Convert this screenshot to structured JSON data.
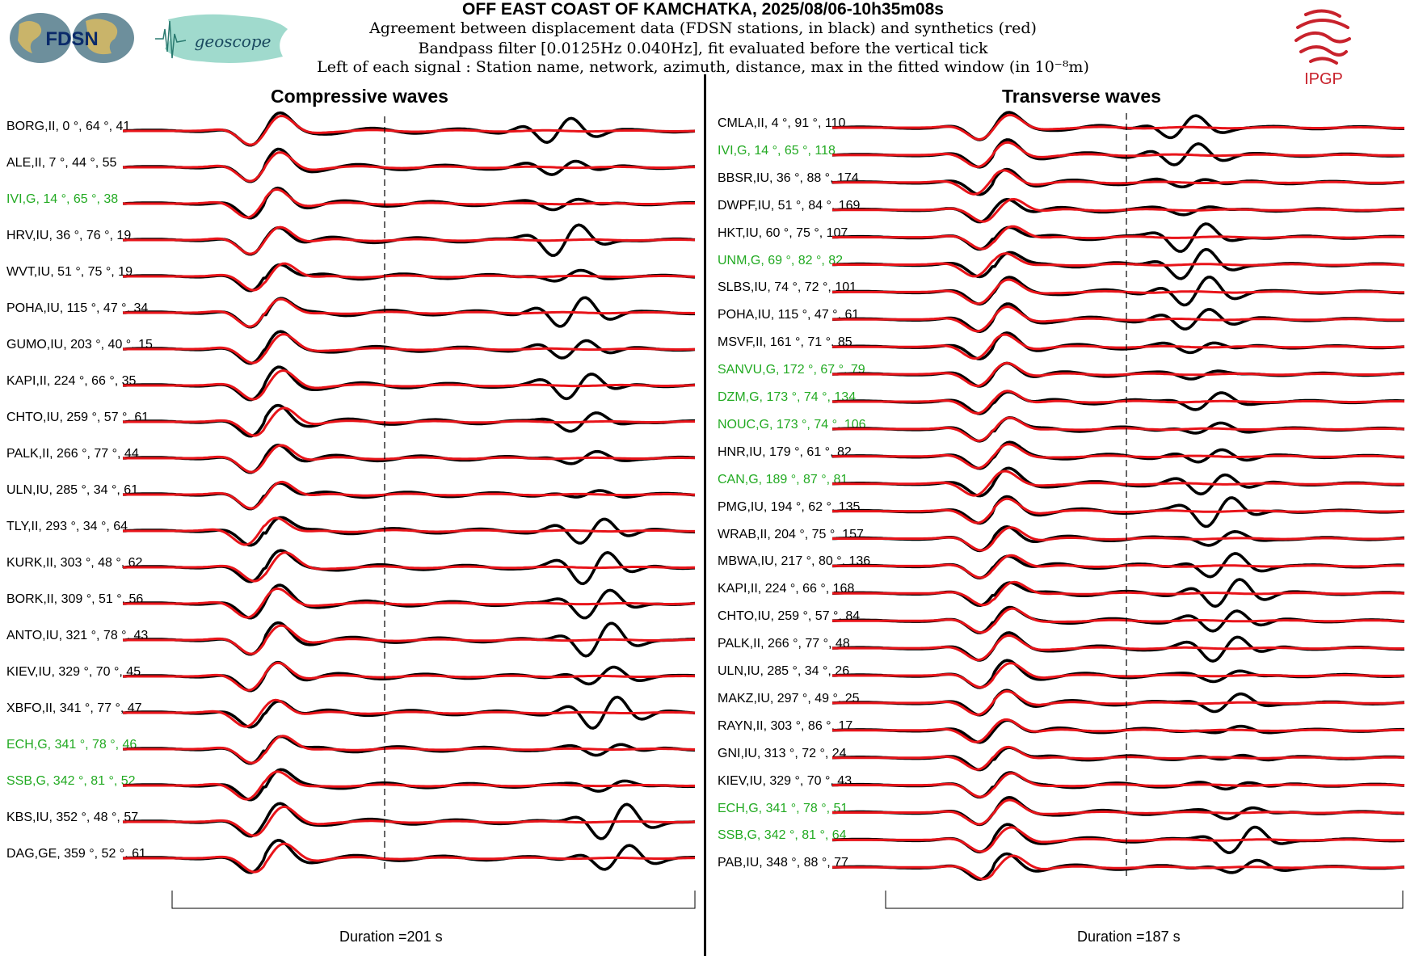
{
  "header": {
    "title": "OFF EAST COAST OF KAMCHATKA, 2025/08/06-10h35m08s",
    "line1": "Agreement between displacement data (FDSN stations, in black) and synthetics (red)",
    "line2": "Bandpass filter [0.0125Hz 0.040Hz], fit evaluated before the vertical tick",
    "line3": "Left of each signal : Station name, network, azimuth, distance, max in the fitted window (in 10⁻⁸m)"
  },
  "logos": {
    "fdsn": "FDSN",
    "geoscope": "geoscope",
    "ipgp": "IPGP"
  },
  "colors": {
    "data": "#000000",
    "synthetic": "#e8141a",
    "geoscope_label": "#22aa22",
    "ipgp": "#c8222c"
  },
  "chart_data": [
    {
      "type": "line",
      "title": "Compressive waves",
      "duration_label": "Duration =201 s",
      "duration_s": 201,
      "series": [
        "data (black)",
        "synthetics (red)"
      ],
      "stations": [
        {
          "label": "BORG,II, 0 °, 64 °, 41",
          "name": "BORG",
          "net": "II",
          "az": 0,
          "dist": 64,
          "max": 41,
          "geoscope": false
        },
        {
          "label": "ALE,II, 7 °, 44 °, 55",
          "name": "ALE",
          "net": "II",
          "az": 7,
          "dist": 44,
          "max": 55,
          "geoscope": false
        },
        {
          "label": "IVI,G, 14 °, 65 °, 38",
          "name": "IVI",
          "net": "G",
          "az": 14,
          "dist": 65,
          "max": 38,
          "geoscope": true
        },
        {
          "label": "HRV,IU, 36 °, 76 °, 19",
          "name": "HRV",
          "net": "IU",
          "az": 36,
          "dist": 76,
          "max": 19,
          "geoscope": false
        },
        {
          "label": "WVT,IU, 51 °, 75 °, 19",
          "name": "WVT",
          "net": "IU",
          "az": 51,
          "dist": 75,
          "max": 19,
          "geoscope": false
        },
        {
          "label": "POHA,IU, 115 °, 47 °, 34",
          "name": "POHA",
          "net": "IU",
          "az": 115,
          "dist": 47,
          "max": 34,
          "geoscope": false
        },
        {
          "label": "GUMO,IU, 203 °, 40 °, 15",
          "name": "GUMO",
          "net": "IU",
          "az": 203,
          "dist": 40,
          "max": 15,
          "geoscope": false
        },
        {
          "label": "KAPI,II, 224 °, 66 °, 35",
          "name": "KAPI",
          "net": "II",
          "az": 224,
          "dist": 66,
          "max": 35,
          "geoscope": false
        },
        {
          "label": "CHTO,IU, 259 °, 57 °, 61",
          "name": "CHTO",
          "net": "IU",
          "az": 259,
          "dist": 57,
          "max": 61,
          "geoscope": false
        },
        {
          "label": "PALK,II, 266 °, 77 °, 44",
          "name": "PALK",
          "net": "II",
          "az": 266,
          "dist": 77,
          "max": 44,
          "geoscope": false
        },
        {
          "label": "ULN,IU, 285 °, 34 °, 61",
          "name": "ULN",
          "net": "IU",
          "az": 285,
          "dist": 34,
          "max": 61,
          "geoscope": false
        },
        {
          "label": "TLY,II, 293 °, 34 °, 64",
          "name": "TLY",
          "net": "II",
          "az": 293,
          "dist": 34,
          "max": 64,
          "geoscope": false
        },
        {
          "label": "KURK,II, 303 °, 48 °, 62",
          "name": "KURK",
          "net": "II",
          "az": 303,
          "dist": 48,
          "max": 62,
          "geoscope": false
        },
        {
          "label": "BORK,II, 309 °, 51 °, 56",
          "name": "BORK",
          "net": "II",
          "az": 309,
          "dist": 51,
          "max": 56,
          "geoscope": false
        },
        {
          "label": "ANTO,IU, 321 °, 78 °, 43",
          "name": "ANTO",
          "net": "IU",
          "az": 321,
          "dist": 78,
          "max": 43,
          "geoscope": false
        },
        {
          "label": "KIEV,IU, 329 °, 70 °, 45",
          "name": "KIEV",
          "net": "IU",
          "az": 329,
          "dist": 70,
          "max": 45,
          "geoscope": false
        },
        {
          "label": "XBFO,II, 341 °, 77 °, 47",
          "name": "XBFO",
          "net": "II",
          "az": 341,
          "dist": 77,
          "max": 47,
          "geoscope": false
        },
        {
          "label": "ECH,G, 341 °, 78 °, 46",
          "name": "ECH",
          "net": "G",
          "az": 341,
          "dist": 78,
          "max": 46,
          "geoscope": true
        },
        {
          "label": "SSB,G, 342 °, 81 °, 52",
          "name": "SSB",
          "net": "G",
          "az": 342,
          "dist": 81,
          "max": 52,
          "geoscope": true
        },
        {
          "label": "KBS,IU, 352 °, 48 °, 57",
          "name": "KBS",
          "net": "IU",
          "az": 352,
          "dist": 48,
          "max": 57,
          "geoscope": false
        },
        {
          "label": "DAG,GE, 359 °, 52 °, 61",
          "name": "DAG",
          "net": "GE",
          "az": 359,
          "dist": 52,
          "max": 61,
          "geoscope": false
        }
      ]
    },
    {
      "type": "line",
      "title": "Transverse waves",
      "duration_label": "Duration =187 s",
      "duration_s": 187,
      "series": [
        "data (black)",
        "synthetics (red)"
      ],
      "stations": [
        {
          "label": "CMLA,II, 4 °, 91 °, 110",
          "name": "CMLA",
          "net": "II",
          "az": 4,
          "dist": 91,
          "max": 110,
          "geoscope": false
        },
        {
          "label": "IVI,G, 14 °, 65 °, 118",
          "name": "IVI",
          "net": "G",
          "az": 14,
          "dist": 65,
          "max": 118,
          "geoscope": true
        },
        {
          "label": "BBSR,IU, 36 °, 88 °, 174",
          "name": "BBSR",
          "net": "IU",
          "az": 36,
          "dist": 88,
          "max": 174,
          "geoscope": false
        },
        {
          "label": "DWPF,IU, 51 °, 84 °, 169",
          "name": "DWPF",
          "net": "IU",
          "az": 51,
          "dist": 84,
          "max": 169,
          "geoscope": false
        },
        {
          "label": "HKT,IU, 60 °, 75 °, 107",
          "name": "HKT",
          "net": "IU",
          "az": 60,
          "dist": 75,
          "max": 107,
          "geoscope": false
        },
        {
          "label": "UNM,G, 69 °, 82 °, 82",
          "name": "UNM",
          "net": "G",
          "az": 69,
          "dist": 82,
          "max": 82,
          "geoscope": true
        },
        {
          "label": "SLBS,IU, 74 °, 72 °, 101",
          "name": "SLBS",
          "net": "IU",
          "az": 74,
          "dist": 72,
          "max": 101,
          "geoscope": false
        },
        {
          "label": "POHA,IU, 115 °, 47 °, 61",
          "name": "POHA",
          "net": "IU",
          "az": 115,
          "dist": 47,
          "max": 61,
          "geoscope": false
        },
        {
          "label": "MSVF,II, 161 °, 71 °, 85",
          "name": "MSVF",
          "net": "II",
          "az": 161,
          "dist": 71,
          "max": 85,
          "geoscope": false
        },
        {
          "label": "SANVU,G, 172 °, 67 °, 79",
          "name": "SANVU",
          "net": "G",
          "az": 172,
          "dist": 67,
          "max": 79,
          "geoscope": true
        },
        {
          "label": "DZM,G, 173 °, 74 °, 134",
          "name": "DZM",
          "net": "G",
          "az": 173,
          "dist": 74,
          "max": 134,
          "geoscope": true
        },
        {
          "label": "NOUC,G, 173 °, 74 °, 106",
          "name": "NOUC",
          "net": "G",
          "az": 173,
          "dist": 74,
          "max": 106,
          "geoscope": true
        },
        {
          "label": "HNR,IU, 179 °, 61 °, 82",
          "name": "HNR",
          "net": "IU",
          "az": 179,
          "dist": 61,
          "max": 82,
          "geoscope": false
        },
        {
          "label": "CAN,G, 189 °, 87 °, 81",
          "name": "CAN",
          "net": "G",
          "az": 189,
          "dist": 87,
          "max": 81,
          "geoscope": true
        },
        {
          "label": "PMG,IU, 194 °, 62 °, 135",
          "name": "PMG",
          "net": "IU",
          "az": 194,
          "dist": 62,
          "max": 135,
          "geoscope": false
        },
        {
          "label": "WRAB,II, 204 °, 75 °, 157",
          "name": "WRAB",
          "net": "II",
          "az": 204,
          "dist": 75,
          "max": 157,
          "geoscope": false
        },
        {
          "label": "MBWA,IU, 217 °, 80 °, 136",
          "name": "MBWA",
          "net": "IU",
          "az": 217,
          "dist": 80,
          "max": 136,
          "geoscope": false
        },
        {
          "label": "KAPI,II, 224 °, 66 °, 168",
          "name": "KAPI",
          "net": "II",
          "az": 224,
          "dist": 66,
          "max": 168,
          "geoscope": false
        },
        {
          "label": "CHTO,IU, 259 °, 57 °, 84",
          "name": "CHTO",
          "net": "IU",
          "az": 259,
          "dist": 57,
          "max": 84,
          "geoscope": false
        },
        {
          "label": "PALK,II, 266 °, 77 °, 48",
          "name": "PALK",
          "net": "II",
          "az": 266,
          "dist": 77,
          "max": 48,
          "geoscope": false
        },
        {
          "label": "ULN,IU, 285 °, 34 °, 26",
          "name": "ULN",
          "net": "IU",
          "az": 285,
          "dist": 34,
          "max": 26,
          "geoscope": false
        },
        {
          "label": "MAKZ,IU, 297 °, 49 °, 25",
          "name": "MAKZ",
          "net": "IU",
          "az": 297,
          "dist": 49,
          "max": 25,
          "geoscope": false
        },
        {
          "label": "RAYN,II, 303 °, 86 °, 17",
          "name": "RAYN",
          "net": "II",
          "az": 303,
          "dist": 86,
          "max": 17,
          "geoscope": false
        },
        {
          "label": "GNI,IU, 313 °, 72 °, 24",
          "name": "GNI",
          "net": "IU",
          "az": 313,
          "dist": 72,
          "max": 24,
          "geoscope": false
        },
        {
          "label": "KIEV,IU, 329 °, 70 °, 43",
          "name": "KIEV",
          "net": "IU",
          "az": 329,
          "dist": 70,
          "max": 43,
          "geoscope": false
        },
        {
          "label": "ECH,G, 341 °, 78 °, 51",
          "name": "ECH",
          "net": "G",
          "az": 341,
          "dist": 78,
          "max": 51,
          "geoscope": true
        },
        {
          "label": "SSB,G, 342 °, 81 °, 64",
          "name": "SSB",
          "net": "G",
          "az": 342,
          "dist": 81,
          "max": 64,
          "geoscope": true
        },
        {
          "label": "PAB,IU, 348 °, 88 °, 77",
          "name": "PAB",
          "net": "IU",
          "az": 348,
          "dist": 88,
          "max": 77,
          "geoscope": false
        }
      ]
    }
  ]
}
